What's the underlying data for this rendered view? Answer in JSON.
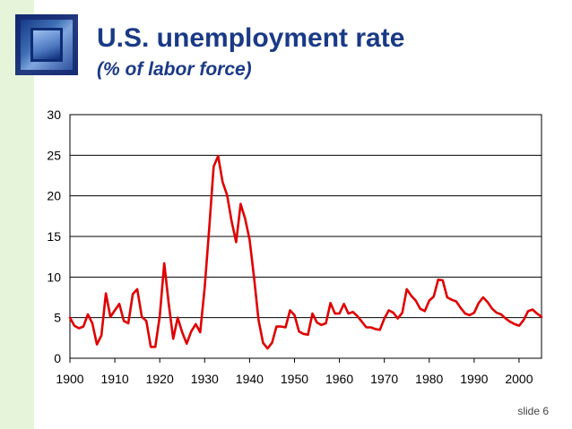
{
  "header": {
    "title": "U.S. unemployment rate",
    "subtitle": "(% of labor force)"
  },
  "footer": {
    "slide_label": "slide 6"
  },
  "colors": {
    "title": "#1a3a86",
    "line": "#e00000",
    "strip": "#e6f5d9"
  },
  "chart_data": {
    "type": "line",
    "title": "",
    "xlabel": "",
    "ylabel": "",
    "xlim": [
      1900,
      2005
    ],
    "ylim": [
      0,
      30
    ],
    "grid": "horizontal",
    "x_ticks": [
      1900,
      1910,
      1920,
      1930,
      1940,
      1950,
      1960,
      1970,
      1980,
      1990,
      2000
    ],
    "y_ticks": [
      0,
      5,
      10,
      15,
      20,
      25,
      30
    ],
    "series": [
      {
        "name": "Unemployment rate",
        "x": [
          1900,
          1901,
          1902,
          1903,
          1904,
          1905,
          1906,
          1907,
          1908,
          1909,
          1910,
          1911,
          1912,
          1913,
          1914,
          1915,
          1916,
          1917,
          1918,
          1919,
          1920,
          1921,
          1922,
          1923,
          1924,
          1925,
          1926,
          1927,
          1928,
          1929,
          1930,
          1931,
          1932,
          1933,
          1934,
          1935,
          1936,
          1937,
          1938,
          1939,
          1940,
          1941,
          1942,
          1943,
          1944,
          1945,
          1946,
          1947,
          1948,
          1949,
          1950,
          1951,
          1952,
          1953,
          1954,
          1955,
          1956,
          1957,
          1958,
          1959,
          1960,
          1961,
          1962,
          1963,
          1964,
          1965,
          1966,
          1967,
          1968,
          1969,
          1970,
          1971,
          1972,
          1973,
          1974,
          1975,
          1976,
          1977,
          1978,
          1979,
          1980,
          1981,
          1982,
          1983,
          1984,
          1985,
          1986,
          1987,
          1988,
          1989,
          1990,
          1991,
          1992,
          1993,
          1994,
          1995,
          1996,
          1997,
          1998,
          1999,
          2000,
          2001,
          2002,
          2003,
          2004,
          2005
        ],
        "values": [
          5.0,
          4.0,
          3.7,
          3.9,
          5.4,
          4.3,
          1.7,
          2.8,
          8.0,
          5.1,
          5.9,
          6.7,
          4.6,
          4.3,
          7.9,
          8.5,
          5.1,
          4.6,
          1.4,
          1.4,
          5.2,
          11.7,
          6.7,
          2.4,
          5.0,
          3.2,
          1.8,
          3.3,
          4.2,
          3.2,
          8.7,
          15.9,
          23.6,
          24.9,
          21.7,
          20.1,
          16.9,
          14.3,
          19.0,
          17.2,
          14.6,
          9.9,
          4.7,
          1.9,
          1.2,
          1.9,
          3.9,
          3.9,
          3.8,
          5.9,
          5.3,
          3.3,
          3.0,
          2.9,
          5.5,
          4.4,
          4.1,
          4.3,
          6.8,
          5.5,
          5.5,
          6.7,
          5.5,
          5.7,
          5.2,
          4.5,
          3.8,
          3.8,
          3.6,
          3.5,
          4.9,
          5.9,
          5.6,
          4.9,
          5.6,
          8.5,
          7.7,
          7.1,
          6.1,
          5.8,
          7.1,
          7.6,
          9.7,
          9.6,
          7.5,
          7.2,
          7.0,
          6.2,
          5.5,
          5.3,
          5.6,
          6.8,
          7.5,
          6.9,
          6.1,
          5.6,
          5.4,
          4.9,
          4.5,
          4.2,
          4.0,
          4.7,
          5.8,
          6.0,
          5.5,
          5.1
        ]
      }
    ]
  }
}
